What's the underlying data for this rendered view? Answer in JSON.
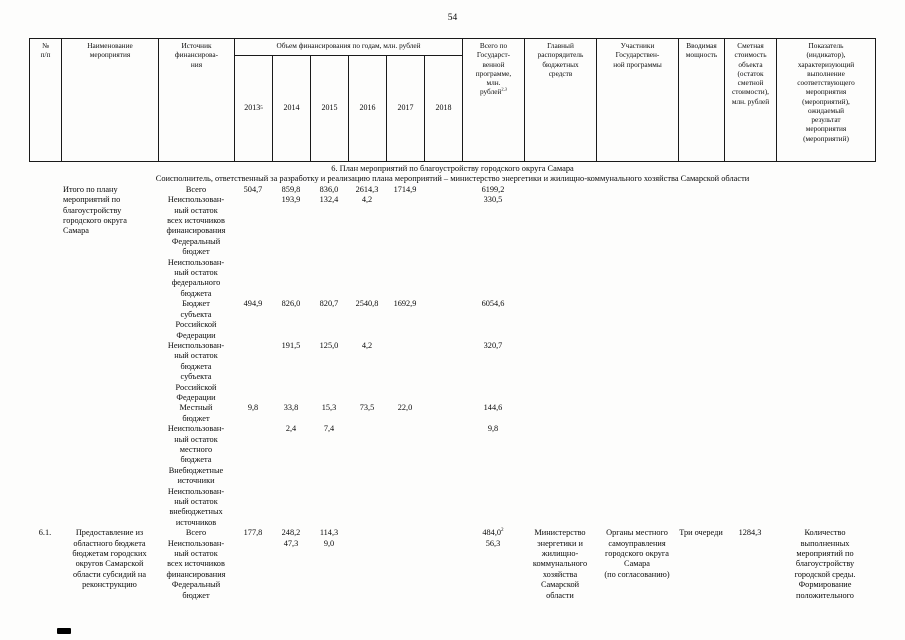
{
  "page": {
    "number": "54"
  },
  "table": {
    "header": {
      "col_num": "№\nп/п",
      "col_name": "Наименование\nмероприятия",
      "col_source": "Источник\nфинансирова-\nния",
      "col_years_group": "Объем финансирования по годам, млн. рублей",
      "years": [
        "2013",
        "2014",
        "2015",
        "2016",
        "2017",
        "2018"
      ],
      "year_2013_sup": "5",
      "col_total": "Всего по\nГосударст-\nвенной\nпрограмме,\nмлн.\nрублей",
      "col_total_sup": "2,3",
      "col_manager": "Главный\nраспорядитель\nбюджетных\nсредств",
      "col_participants": "Участники\nГосударствен-\nной программы",
      "col_capacity": "Вводимая\nмощность",
      "col_cost": "Сметная\nстоимость\nобъекта\n(остаток\nсметной\nстоимости),\nмлн. рублей",
      "col_indicator": "Показатель\n(индикатор),\nхарактеризующий\nвыполнение\nсоответствующего\nмероприятия\n(мероприятий),\nожидаемый\nрезультат\nмероприятия\n(мероприятий)"
    },
    "section_title": "6. План мероприятий по благоустройству городского округа Самара",
    "section_subtitle": "Соисполнитель, ответственный за разработку и реализацию плана мероприятий – министерство энергетики и жилищно-коммунального хозяйства Самарской области",
    "blocks": [
      {
        "num": "",
        "name": "Итого по плану\nмероприятий по\nблагоустройству\nгородского округа\nСамара",
        "manager": "",
        "participants": "",
        "capacity": "",
        "cost": "",
        "indicator": "",
        "entries": [
          {
            "source": "Всего",
            "values": [
              "504,7",
              "859,8",
              "836,0",
              "2614,3",
              "1714,9",
              ""
            ],
            "total": "6199,2",
            "total_sup": ""
          },
          {
            "source": "Неиспользован-\nный остаток\nвсех источников\nфинансирования",
            "values": [
              "",
              "193,9",
              "132,4",
              "4,2",
              "",
              ""
            ],
            "total": "330,5",
            "total_sup": ""
          },
          {
            "source": "Федеральный\nбюджет",
            "values": [
              "",
              "",
              "",
              "",
              "",
              ""
            ],
            "total": "",
            "total_sup": ""
          },
          {
            "source": "Неиспользован-\nный остаток\nфедерального\nбюджета",
            "values": [
              "",
              "",
              "",
              "",
              "",
              ""
            ],
            "total": "",
            "total_sup": ""
          },
          {
            "source": "Бюджет\nсубъекта\nРоссийской\nФедерации",
            "values": [
              "494,9",
              "826,0",
              "820,7",
              "2540,8",
              "1692,9",
              ""
            ],
            "total": "6054,6",
            "total_sup": ""
          },
          {
            "source": "Неиспользован-\nный остаток\nбюджета\nсубъекта\nРоссийской\nФедерации",
            "values": [
              "",
              "191,5",
              "125,0",
              "4,2",
              "",
              ""
            ],
            "total": "320,7",
            "total_sup": ""
          },
          {
            "source": "Местный\nбюджет",
            "values": [
              "9,8",
              "33,8",
              "15,3",
              "73,5",
              "22,0",
              ""
            ],
            "total": "144,6",
            "total_sup": ""
          },
          {
            "source": "Неиспользован-\nный остаток\nместного\nбюджета",
            "values": [
              "",
              "2,4",
              "7,4",
              "",
              "",
              ""
            ],
            "total": "9,8",
            "total_sup": ""
          },
          {
            "source": "Внебюджетные\nисточники",
            "values": [
              "",
              "",
              "",
              "",
              "",
              ""
            ],
            "total": "",
            "total_sup": ""
          },
          {
            "source": "Неиспользован-\nный остаток\nвнебюджетных\nисточников",
            "values": [
              "",
              "",
              "",
              "",
              "",
              ""
            ],
            "total": "",
            "total_sup": ""
          }
        ]
      },
      {
        "num": "6.1.",
        "name": "Предоставление из\nобластного бюджета\nбюджетам городских\nокругов Самарской\nобласти субсидий на\nреконструкцию",
        "manager": "Министерство\nэнергетики и\nжилищно-\nкоммунального\nхозяйства\nСамарской\nобласти",
        "participants": "Органы местного\nсамоуправления\nгородского округа\nСамара\n(по согласованию)",
        "capacity": "Три очереди",
        "cost": "1284,3",
        "indicator": "Количество\nвыполненных\nмероприятий по\nблагоустройству\nгородской среды.\nФормирование\nположительного",
        "entries": [
          {
            "source": "Всего",
            "values": [
              "177,8",
              "248,2",
              "114,3",
              "",
              "",
              ""
            ],
            "total": "484,0",
            "total_sup": "2"
          },
          {
            "source": "Неиспользован-\nный остаток\nвсех источников\nфинансирования",
            "values": [
              "",
              "47,3",
              "9,0",
              "",
              "",
              ""
            ],
            "total": "56,3",
            "total_sup": ""
          },
          {
            "source": "Федеральный\nбюджет",
            "values": [
              "",
              "",
              "",
              "",
              "",
              ""
            ],
            "total": "",
            "total_sup": ""
          }
        ]
      }
    ]
  }
}
